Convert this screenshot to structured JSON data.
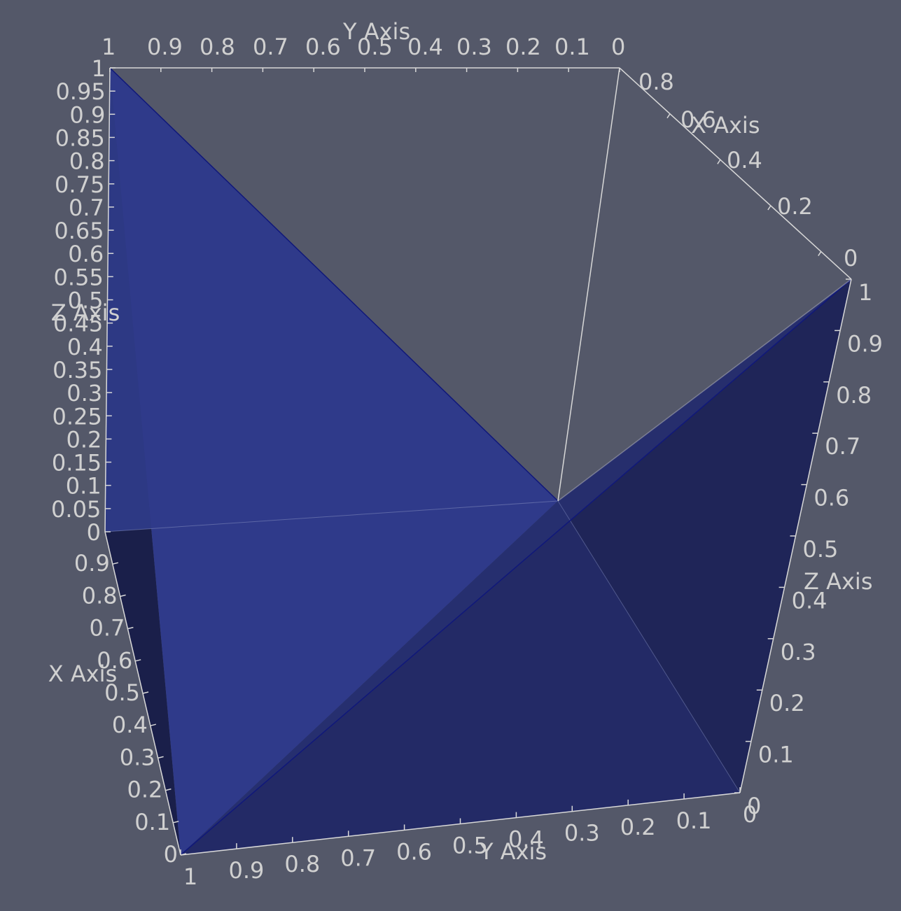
{
  "scene": {
    "background": "#545869",
    "surface_color": "#2e3a8c",
    "axis_color": "#d8d8d8",
    "label_color": "#d0d0d0"
  },
  "axes": {
    "y_top": {
      "title": "Y Axis",
      "ticks": [
        "1",
        "0.9",
        "0.8",
        "0.7",
        "0.6",
        "0.5",
        "0.4",
        "0.3",
        "0.2",
        "0.1",
        "0"
      ]
    },
    "x_top_right": {
      "title": "X Axis",
      "ticks": [
        "0.8",
        "0.6",
        "0.4",
        "0.2",
        "0"
      ]
    },
    "z_left": {
      "title": "Z Axis",
      "ticks": [
        "1",
        "0.95",
        "0.9",
        "0.85",
        "0.8",
        "0.75",
        "0.7",
        "0.65",
        "0.6",
        "0.55",
        "0.5",
        "0.45",
        "0.4",
        "0.35",
        "0.3",
        "0.25",
        "0.2",
        "0.15",
        "0.1",
        "0.05",
        "0"
      ]
    },
    "x_left": {
      "title": "X Axis",
      "ticks": [
        "0.9",
        "0.8",
        "0.7",
        "0.6",
        "0.5",
        "0.4",
        "0.3",
        "0.2",
        "0.1",
        "0"
      ]
    },
    "y_bottom": {
      "title": "Y Axis",
      "ticks": [
        "1",
        "0.9",
        "0.8",
        "0.7",
        "0.6",
        "0.5",
        "0.4",
        "0.3",
        "0.2",
        "0.1",
        "0"
      ]
    },
    "z_right": {
      "title": "Z Axis",
      "ticks": [
        "1",
        "0.9",
        "0.8",
        "0.7",
        "0.6",
        "0.5",
        "0.4",
        "0.3",
        "0.2",
        "0.1",
        "0"
      ]
    },
    "corner_label_top_right": "0"
  }
}
